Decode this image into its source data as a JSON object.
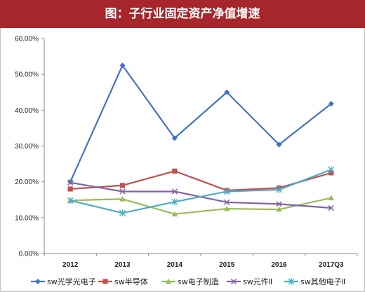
{
  "title": "图：子行业固定资产净值增速",
  "chart_data": {
    "type": "line",
    "title": "图：子行业固定资产净值增速",
    "categories": [
      "2012",
      "2013",
      "2014",
      "2015",
      "2016",
      "2017Q3"
    ],
    "ylim": [
      0,
      60
    ],
    "yticks": [
      0,
      10,
      20,
      30,
      40,
      50,
      60
    ],
    "ytick_labels": [
      "0.00%",
      "10.00%",
      "20.00%",
      "30.00%",
      "40.00%",
      "50.00%",
      "60.00%"
    ],
    "grid": false,
    "legend_position": "bottom",
    "series": [
      {
        "name": "sw光学光电子",
        "color": "#4472c4",
        "marker": "diamond",
        "values": [
          20.0,
          52.5,
          32.2,
          45.0,
          30.4,
          41.8
        ]
      },
      {
        "name": "sw半导体",
        "color": "#c0504d",
        "marker": "square",
        "values": [
          18.0,
          19.0,
          23.0,
          17.6,
          18.3,
          22.5
        ]
      },
      {
        "name": "sw电子制造",
        "color": "#9bbb59",
        "marker": "triangle",
        "values": [
          14.8,
          15.2,
          11.0,
          12.5,
          12.3,
          15.5
        ]
      },
      {
        "name": "sw元件Ⅱ",
        "color": "#8064a2",
        "marker": "x",
        "values": [
          19.8,
          17.3,
          17.3,
          14.3,
          13.8,
          12.7
        ]
      },
      {
        "name": "sw其他电子Ⅱ",
        "color": "#4bacc6",
        "marker": "star",
        "values": [
          14.8,
          11.3,
          14.4,
          17.3,
          17.8,
          23.4
        ]
      }
    ]
  }
}
